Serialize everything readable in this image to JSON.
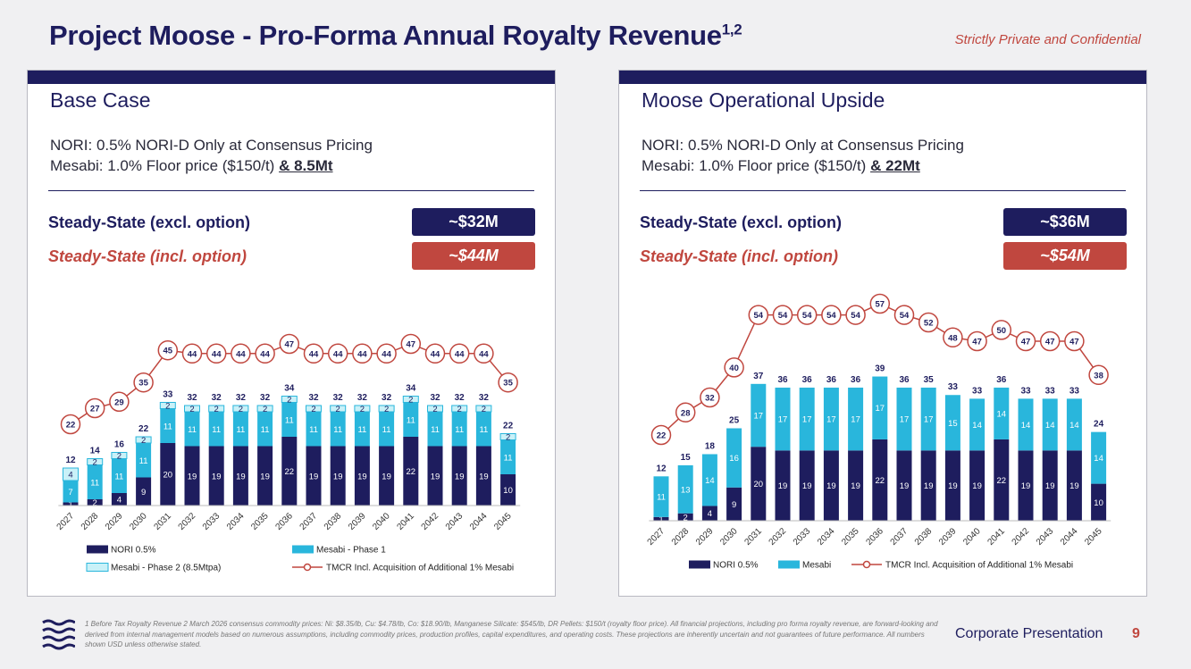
{
  "header": {
    "title": "Project Moose - Pro-Forma Annual Royalty Revenue",
    "title_sup": "1,2",
    "confidential": "Strictly Private and Confidential"
  },
  "colors": {
    "navy": "#1e1d5e",
    "cyan": "#29b6dc",
    "light_cyan": "#c9f1f8",
    "red": "#c0473f"
  },
  "panels": [
    {
      "heading": "Base Case",
      "line1": "NORI: 0.5% NORI-D Only at Consensus Pricing",
      "line2_prefix": "Mesabi: 1.0% Floor price ($150/t) ",
      "line2_bold": "& 8.5Mt",
      "ss_excl_label": "Steady-State (excl. option)",
      "ss_excl_value": "~$32M",
      "ss_incl_label": "Steady-State (incl. option)",
      "ss_incl_value": "~$44M"
    },
    {
      "heading": "Moose Operational Upside",
      "line1": "NORI: 0.5% NORI-D Only at Consensus Pricing",
      "line2_prefix": "Mesabi: 1.0% Floor price ($150/t) ",
      "line2_bold": "& 22Mt",
      "ss_excl_label": "Steady-State (excl. option)",
      "ss_excl_value": "~$36M",
      "ss_incl_label": "Steady-State (incl. option)",
      "ss_incl_value": "~$54M"
    }
  ],
  "chart_data": [
    {
      "type": "bar",
      "stacked": true,
      "categories": [
        "2027",
        "2028",
        "2029",
        "2030",
        "2031",
        "2032",
        "2033",
        "2034",
        "2035",
        "2036",
        "2037",
        "2038",
        "2039",
        "2040",
        "2041",
        "2042",
        "2043",
        "2044",
        "2045"
      ],
      "series": [
        {
          "name": "NORI 0.5%",
          "values": [
            1,
            2,
            4,
            9,
            20,
            19,
            19,
            19,
            19,
            22,
            19,
            19,
            19,
            19,
            22,
            19,
            19,
            19,
            10
          ]
        },
        {
          "name": "Mesabi - Phase 1",
          "values": [
            7,
            11,
            11,
            11,
            11,
            11,
            11,
            11,
            11,
            11,
            11,
            11,
            11,
            11,
            11,
            11,
            11,
            11,
            11
          ]
        },
        {
          "name": "Mesabi - Phase 2 (8.5Mtpa)",
          "values": [
            4,
            2,
            2,
            2,
            2,
            2,
            2,
            2,
            2,
            2,
            2,
            2,
            2,
            2,
            2,
            2,
            2,
            2,
            2
          ]
        }
      ],
      "totals": [
        12,
        14,
        16,
        22,
        33,
        32,
        32,
        32,
        32,
        34,
        32,
        32,
        32,
        32,
        34,
        32,
        32,
        32,
        22
      ],
      "line": {
        "name": "TMCR Incl. Acquisition of Additional 1% Mesabi",
        "values": [
          22,
          27,
          29,
          35,
          45,
          44,
          44,
          44,
          44,
          47,
          44,
          44,
          44,
          44,
          47,
          44,
          44,
          44,
          35
        ]
      }
    },
    {
      "type": "bar",
      "stacked": true,
      "categories": [
        "2027",
        "2028",
        "2029",
        "2030",
        "2031",
        "2032",
        "2033",
        "2034",
        "2035",
        "2036",
        "2037",
        "2038",
        "2039",
        "2040",
        "2041",
        "2042",
        "2043",
        "2044",
        "2045"
      ],
      "series": [
        {
          "name": "NORI 0.5%",
          "values": [
            1,
            2,
            4,
            9,
            20,
            19,
            19,
            19,
            19,
            22,
            19,
            19,
            19,
            19,
            22,
            19,
            19,
            19,
            10
          ]
        },
        {
          "name": "Mesabi",
          "values": [
            11,
            13,
            14,
            16,
            17,
            17,
            17,
            17,
            17,
            17,
            17,
            17,
            15,
            14,
            14,
            14,
            14,
            14,
            14
          ]
        }
      ],
      "totals": [
        12,
        15,
        18,
        25,
        37,
        36,
        36,
        36,
        36,
        39,
        36,
        35,
        33,
        33,
        36,
        33,
        33,
        33,
        24
      ],
      "line": {
        "name": "TMCR Incl. Acquisition of Additional 1% Mesabi",
        "values": [
          22,
          28,
          32,
          40,
          54,
          54,
          54,
          54,
          54,
          57,
          54,
          52,
          48,
          47,
          50,
          47,
          47,
          47,
          38
        ]
      }
    }
  ],
  "footer": {
    "footnote": "1 Before Tax Royalty Revenue 2 March 2026 consensus commodity prices: Ni: $8.35/lb, Cu: $4.78/lb, Co: $18.90/lb, Manganese Silicate: $545/lb, DR Pellets: $150/t (royalty floor price). All financial projections, including pro forma royalty revenue, are forward-looking and derived from internal management models based on numerous assumptions, including commodity prices, production profiles, capital expenditures, and operating costs. These projections are inherently uncertain and not guarantees of future performance. All numbers shown USD unless otherwise stated.",
    "corporate": "Corporate Presentation",
    "page": "9"
  }
}
